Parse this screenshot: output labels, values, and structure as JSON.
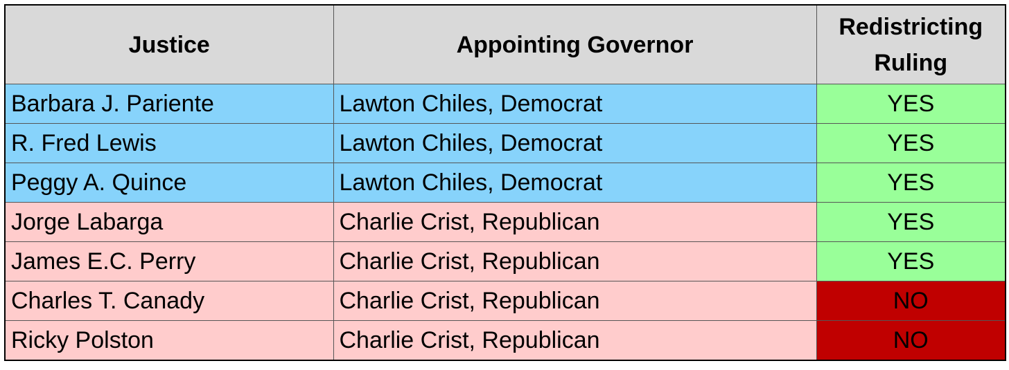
{
  "table": {
    "header": [
      "Justice",
      "Appointing Governor",
      "Redistricting Ruling"
    ],
    "rows": [
      [
        "Barbara J. Pariente",
        "Lawton Chiles, Democrat",
        "YES"
      ],
      [
        "R. Fred Lewis",
        "Lawton Chiles, Democrat",
        "YES"
      ],
      [
        "Peggy A. Quince",
        "Lawton Chiles, Democrat",
        "YES"
      ],
      [
        "Jorge Labarga",
        "Charlie Crist, Republican",
        "YES"
      ],
      [
        "James E.C. Perry",
        "Charlie Crist, Republican",
        "YES"
      ],
      [
        "Charles T. Canady",
        "Charlie Crist, Republican",
        "NO"
      ],
      [
        "Ricky Polston",
        "Charlie Crist, Republican",
        "NO"
      ]
    ]
  }
}
